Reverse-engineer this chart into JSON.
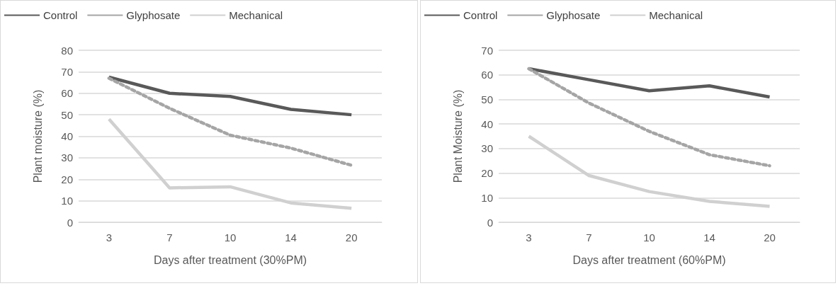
{
  "chart_data": [
    {
      "type": "line",
      "xlabel": "Days after treatment (30%PM)",
      "ylabel": "Plant moisture (%)",
      "categories": [
        "3",
        "7",
        "10",
        "14",
        "20"
      ],
      "series": [
        {
          "name": "Control",
          "color": "#595959",
          "line_style": "solid",
          "values": [
            67.5,
            60,
            58.5,
            52.5,
            50
          ]
        },
        {
          "name": "Glyphosate",
          "color": "#a5a5a5",
          "line_style": "dotted",
          "values": [
            67,
            53,
            40.5,
            34.5,
            26.5
          ]
        },
        {
          "name": "Mechanical",
          "color": "#d0d0d0",
          "line_style": "solid",
          "values": [
            48,
            16,
            16.5,
            9,
            6.5
          ]
        }
      ],
      "ylim": [
        0,
        80
      ],
      "yticks": [
        0,
        10,
        20,
        30,
        40,
        50,
        60,
        70,
        80
      ],
      "grid": "y",
      "legend": "top",
      "marker": "none"
    },
    {
      "type": "line",
      "xlabel": "Days after treatment (60%PM)",
      "ylabel": "Plant Moisture (%)",
      "categories": [
        "3",
        "7",
        "10",
        "14",
        "20"
      ],
      "series": [
        {
          "name": "Control",
          "color": "#595959",
          "line_style": "solid",
          "values": [
            62.5,
            58,
            53.5,
            55.5,
            51
          ]
        },
        {
          "name": "Glyphosate",
          "color": "#a5a5a5",
          "line_style": "dotted",
          "values": [
            62.5,
            48.5,
            37,
            27.5,
            23
          ]
        },
        {
          "name": "Mechanical",
          "color": "#d0d0d0",
          "line_style": "solid",
          "values": [
            35,
            19,
            12.5,
            8.5,
            6.5
          ]
        }
      ],
      "ylim": [
        0,
        70
      ],
      "yticks": [
        0,
        10,
        20,
        30,
        40,
        50,
        60,
        70
      ],
      "grid": "y",
      "legend": "top",
      "marker": "none"
    }
  ]
}
